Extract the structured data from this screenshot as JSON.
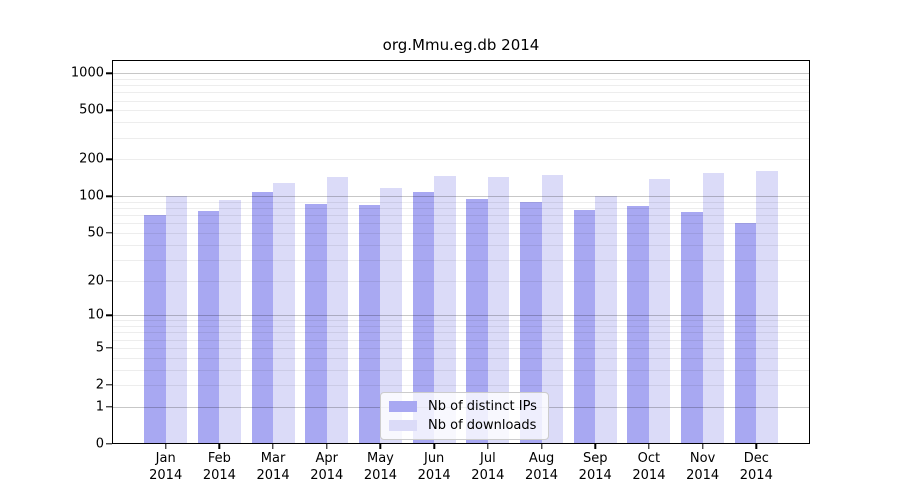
{
  "colors": {
    "distinct_ips": "#a8a8f2",
    "downloads": "#dbdbf8",
    "grid_major": "rgba(0,0,0,0.22)",
    "grid_minor": "rgba(0,0,0,0.07)",
    "axis": "#000000",
    "legend_border": "#cccccc",
    "legend_background": "rgba(255,255,255,0.8)",
    "text": "#000000"
  },
  "chart_data": {
    "type": "bar",
    "title": "org.Mmu.eg.db 2014",
    "categories": [
      "Jan",
      "Feb",
      "Mar",
      "Apr",
      "May",
      "Jun",
      "Jul",
      "Aug",
      "Sep",
      "Oct",
      "Nov",
      "Dec"
    ],
    "category_year": "2014",
    "series": [
      {
        "name": "Nb of distinct IPs",
        "color": "#a8a8f2",
        "values": [
          70,
          76,
          108,
          87,
          85,
          109,
          95,
          90,
          78,
          84,
          75,
          61
        ]
      },
      {
        "name": "Nb of downloads",
        "color": "#dbdbf8",
        "values": [
          100,
          94,
          128,
          143,
          118,
          146,
          143,
          150,
          101,
          138,
          154,
          161
        ]
      }
    ],
    "xlabel": "",
    "ylabel": "",
    "y_ticks": [
      0,
      1,
      2,
      5,
      10,
      20,
      50,
      100,
      200,
      500,
      1000
    ],
    "ylim": [
      0,
      1000
    ],
    "y_scale": "log10(1+v)",
    "grid": true,
    "legend_position": "inside-bottom-center"
  }
}
